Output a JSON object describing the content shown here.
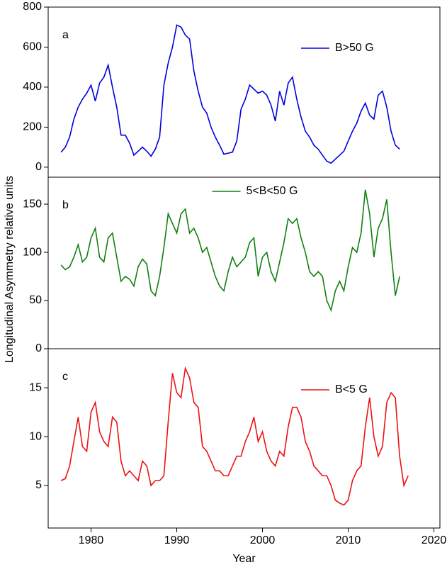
{
  "chart_data": [
    {
      "type": "line",
      "panel_label": "a",
      "legend": "upper right",
      "xlim": [
        1975,
        2020.7
      ],
      "ylim": [
        -50,
        800
      ],
      "yticks": [
        0,
        200,
        400,
        600,
        800
      ],
      "x": [
        1976.5,
        1977,
        1977.5,
        1978,
        1978.5,
        1979,
        1979.5,
        1980,
        1980.5,
        1981,
        1981.5,
        1982,
        1982.5,
        1983,
        1983.5,
        1984,
        1984.5,
        1985,
        1985.5,
        1986,
        1986.5,
        1987,
        1987.5,
        1988,
        1988.5,
        1989,
        1989.5,
        1990,
        1990.5,
        1991,
        1991.5,
        1992,
        1992.5,
        1993,
        1993.5,
        1994,
        1994.5,
        1995,
        1995.5,
        1996,
        1996.5,
        1997,
        1997.5,
        1998,
        1998.5,
        1999,
        1999.5,
        2000,
        2000.5,
        2001,
        2001.5,
        2002,
        2002.5,
        2003,
        2003.5,
        2004,
        2004.5,
        2005,
        2005.5,
        2006,
        2006.5,
        2007,
        2007.5,
        2008,
        2008.5,
        2009,
        2009.5,
        2010,
        2010.5,
        2011,
        2011.5,
        2012,
        2012.5,
        2013,
        2013.5,
        2014,
        2014.5,
        2015,
        2015.5,
        2016
      ],
      "series": [
        {
          "name": "B>50 G",
          "color": "#0000e0",
          "values": [
            75,
            100,
            150,
            240,
            300,
            340,
            370,
            410,
            330,
            420,
            450,
            510,
            400,
            300,
            160,
            160,
            120,
            60,
            80,
            100,
            80,
            55,
            90,
            150,
            410,
            520,
            600,
            710,
            700,
            660,
            640,
            480,
            380,
            300,
            270,
            200,
            150,
            110,
            65,
            70,
            75,
            130,
            290,
            340,
            410,
            390,
            370,
            380,
            360,
            310,
            230,
            380,
            310,
            420,
            450,
            340,
            250,
            180,
            150,
            110,
            90,
            60,
            30,
            20,
            40,
            60,
            80,
            130,
            180,
            220,
            280,
            320,
            260,
            240,
            360,
            380,
            300,
            180,
            110,
            90
          ]
        }
      ]
    },
    {
      "type": "line",
      "panel_label": "b",
      "legend": "upper center",
      "ylabel": "Longitudinal Asymmetry  relative units",
      "xlim": [
        1975,
        2020.7
      ],
      "ylim": [
        0,
        178
      ],
      "yticks": [
        0,
        50,
        100,
        150
      ],
      "x": [
        1976.5,
        1977,
        1977.5,
        1978,
        1978.5,
        1979,
        1979.5,
        1980,
        1980.5,
        1981,
        1981.5,
        1982,
        1982.5,
        1983,
        1983.5,
        1984,
        1984.5,
        1985,
        1985.5,
        1986,
        1986.5,
        1987,
        1987.5,
        1988,
        1988.5,
        1989,
        1989.5,
        1990,
        1990.5,
        1991,
        1991.5,
        1992,
        1992.5,
        1993,
        1993.5,
        1994,
        1994.5,
        1995,
        1995.5,
        1996,
        1996.5,
        1997,
        1997.5,
        1998,
        1998.5,
        1999,
        1999.5,
        2000,
        2000.5,
        2001,
        2001.5,
        2002,
        2002.5,
        2003,
        2003.5,
        2004,
        2004.5,
        2005,
        2005.5,
        2006,
        2006.5,
        2007,
        2007.5,
        2008,
        2008.5,
        2009,
        2009.5,
        2010,
        2010.5,
        2011,
        2011.5,
        2012,
        2012.5,
        2013,
        2013.5,
        2014,
        2014.5,
        2015,
        2015.5,
        2016
      ],
      "series": [
        {
          "name": "5<B<50 G",
          "color": "#108010",
          "values": [
            87,
            82,
            85,
            95,
            108,
            90,
            95,
            115,
            125,
            95,
            90,
            115,
            120,
            95,
            70,
            75,
            72,
            65,
            85,
            93,
            88,
            60,
            55,
            75,
            105,
            140,
            130,
            120,
            140,
            145,
            120,
            125,
            115,
            100,
            105,
            90,
            75,
            65,
            60,
            80,
            95,
            85,
            90,
            95,
            110,
            115,
            75,
            95,
            100,
            80,
            70,
            90,
            110,
            135,
            130,
            135,
            115,
            100,
            80,
            75,
            80,
            75,
            50,
            40,
            60,
            70,
            60,
            85,
            105,
            100,
            120,
            165,
            140,
            95,
            125,
            135,
            155,
            100,
            55,
            75
          ]
        }
      ]
    },
    {
      "type": "line",
      "panel_label": "c",
      "legend": "upper right",
      "xlabel": "Year",
      "xlim": [
        1975,
        2020.7
      ],
      "xticks": [
        1980,
        1990,
        2000,
        2010,
        2020
      ],
      "ylim": [
        0.65,
        19
      ],
      "yticks": [
        5,
        10,
        15
      ],
      "x": [
        1976.5,
        1977,
        1977.5,
        1978,
        1978.5,
        1979,
        1979.5,
        1980,
        1980.5,
        1981,
        1981.5,
        1982,
        1982.5,
        1983,
        1983.5,
        1984,
        1984.5,
        1985,
        1985.5,
        1986,
        1986.5,
        1987,
        1987.5,
        1988,
        1988.5,
        1989,
        1989.5,
        1990,
        1990.5,
        1991,
        1991.5,
        1992,
        1992.5,
        1993,
        1993.5,
        1994,
        1994.5,
        1995,
        1995.5,
        1996,
        1996.5,
        1997,
        1997.5,
        1998,
        1998.5,
        1999,
        1999.5,
        2000,
        2000.5,
        2001,
        2001.5,
        2002,
        2002.5,
        2003,
        2003.5,
        2004,
        2004.5,
        2005,
        2005.5,
        2006,
        2006.5,
        2007,
        2007.5,
        2008,
        2008.5,
        2009,
        2009.5,
        2010,
        2010.5,
        2011,
        2011.5,
        2012,
        2012.5,
        2013,
        2013.5,
        2014,
        2014.5,
        2015,
        2015.5,
        2016,
        2016.5,
        2017
      ],
      "series": [
        {
          "name": "B<5 G",
          "color": "#ee1111",
          "values": [
            5.5,
            5.7,
            7.0,
            9.5,
            12.0,
            9.0,
            8.5,
            12.5,
            13.5,
            10.5,
            9.5,
            9.0,
            12.0,
            11.5,
            7.5,
            6.0,
            6.5,
            6.0,
            5.5,
            7.5,
            7.0,
            5.0,
            5.5,
            5.5,
            6.0,
            11.5,
            16.5,
            14.5,
            14.0,
            17.0,
            16.0,
            13.5,
            13.0,
            9.0,
            8.5,
            7.5,
            6.5,
            6.5,
            6.0,
            6.0,
            7.0,
            8.0,
            8.0,
            9.5,
            10.5,
            12.0,
            9.5,
            10.5,
            8.5,
            7.5,
            7.0,
            8.5,
            8.0,
            11.0,
            13.0,
            13.0,
            12.0,
            9.5,
            8.5,
            7.0,
            6.5,
            6.0,
            6.0,
            5.0,
            3.5,
            3.2,
            3.0,
            3.5,
            5.5,
            6.5,
            7.0,
            11.0,
            14.0,
            10.0,
            8.0,
            9.0,
            13.5,
            14.5,
            14.0,
            8.0,
            5.0,
            6.0
          ]
        }
      ]
    }
  ]
}
